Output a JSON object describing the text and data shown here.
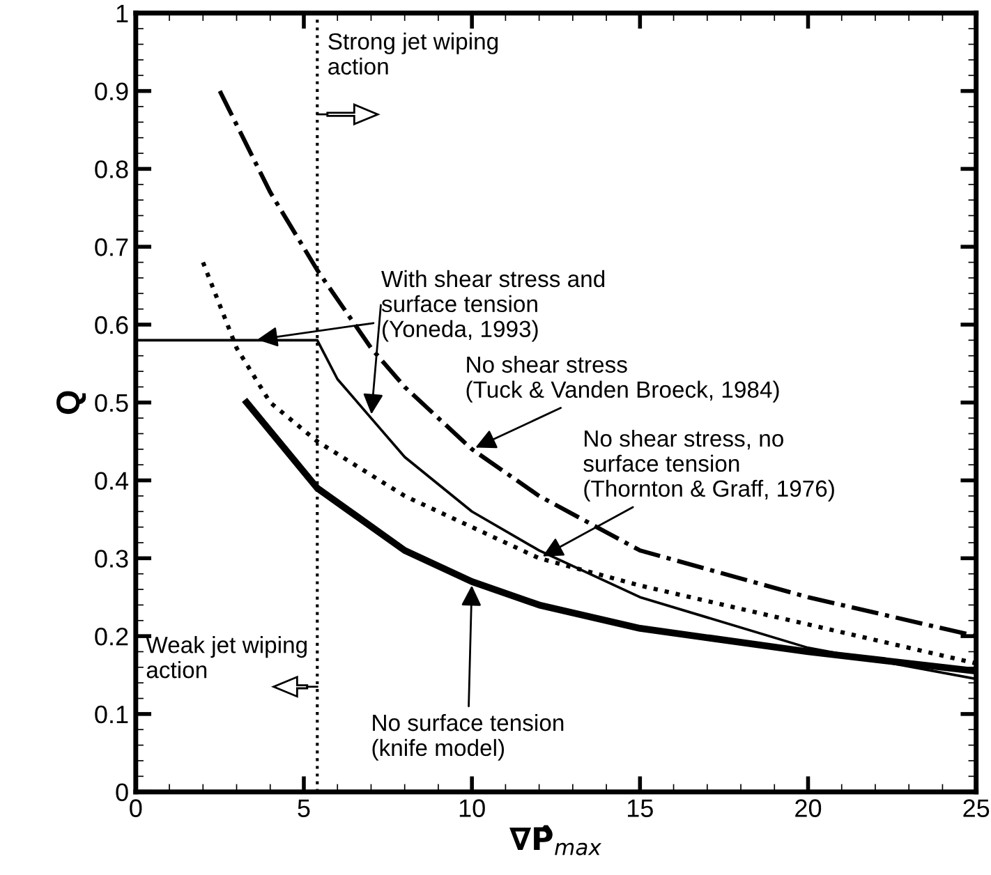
{
  "chart_data": {
    "type": "line",
    "xlabel": "∇P̂$_{max}$",
    "ylabel": "Q",
    "series": [
      {
        "color": "#000000",
        "line_style": "solid",
        "x": [
          0,
          5.4,
          6,
          7,
          8,
          10,
          12,
          15,
          20,
          25
        ],
        "values": [
          0.58,
          0.58,
          0.53,
          0.48,
          0.43,
          0.36,
          0.31,
          0.25,
          0.185,
          0.145
        ]
      },
      {
        "color": "#000000",
        "line_style": "dashdot",
        "x": [
          2.5,
          4,
          5.4,
          7,
          8,
          10,
          12,
          15,
          20,
          25
        ],
        "values": [
          0.9,
          0.77,
          0.67,
          0.57,
          0.52,
          0.44,
          0.38,
          0.31,
          0.25,
          0.2
        ]
      },
      {
        "color": "#000000",
        "line_style": "dotted",
        "x": [
          2,
          3,
          4,
          5.4,
          8,
          10,
          12,
          15,
          20,
          25
        ],
        "values": [
          0.68,
          0.57,
          0.5,
          0.45,
          0.38,
          0.34,
          0.3,
          0.265,
          0.215,
          0.165
        ]
      },
      {
        "color": "#000000",
        "line_style": "solid",
        "x": [
          3.3,
          5.4,
          8,
          10,
          12,
          15,
          20,
          25
        ],
        "values": [
          0.5,
          0.39,
          0.31,
          0.27,
          0.24,
          0.21,
          0.18,
          0.155
        ]
      }
    ],
    "xlim": [
      0,
      25
    ],
    "xticks": [
      0,
      5,
      10,
      15,
      20,
      25
    ],
    "ylim": [
      0,
      1
    ],
    "yticks": [
      0,
      0.1,
      0.2,
      0.3,
      0.4,
      0.5,
      0.6,
      0.7,
      0.8,
      0.9,
      1
    ],
    "ref_lines": [
      {
        "axis": "x",
        "value": 5.4,
        "line_style": "dotted",
        "color": "#000000"
      }
    ],
    "annotations": [
      "Strong jet wiping\naction",
      "Weak jet wiping\naction",
      {
        "text": "With shear stress and\nsurface tension\n(Yoneda, 1993)",
        "x": 3.5,
        "y": 0.58
      },
      {
        "text": "No shear stress\n(Tuck & Vanden Broeck, 1984)",
        "x": 10,
        "y": 0.44
      },
      {
        "text": "No shear stress, no\nsurface tension\n(Thornton & Graff, 1976)",
        "x": 12,
        "y": 0.3
      },
      {
        "text": "No surface tension\n(knife model)",
        "x": 10,
        "y": 0.27
      }
    ],
    "grid": false
  }
}
